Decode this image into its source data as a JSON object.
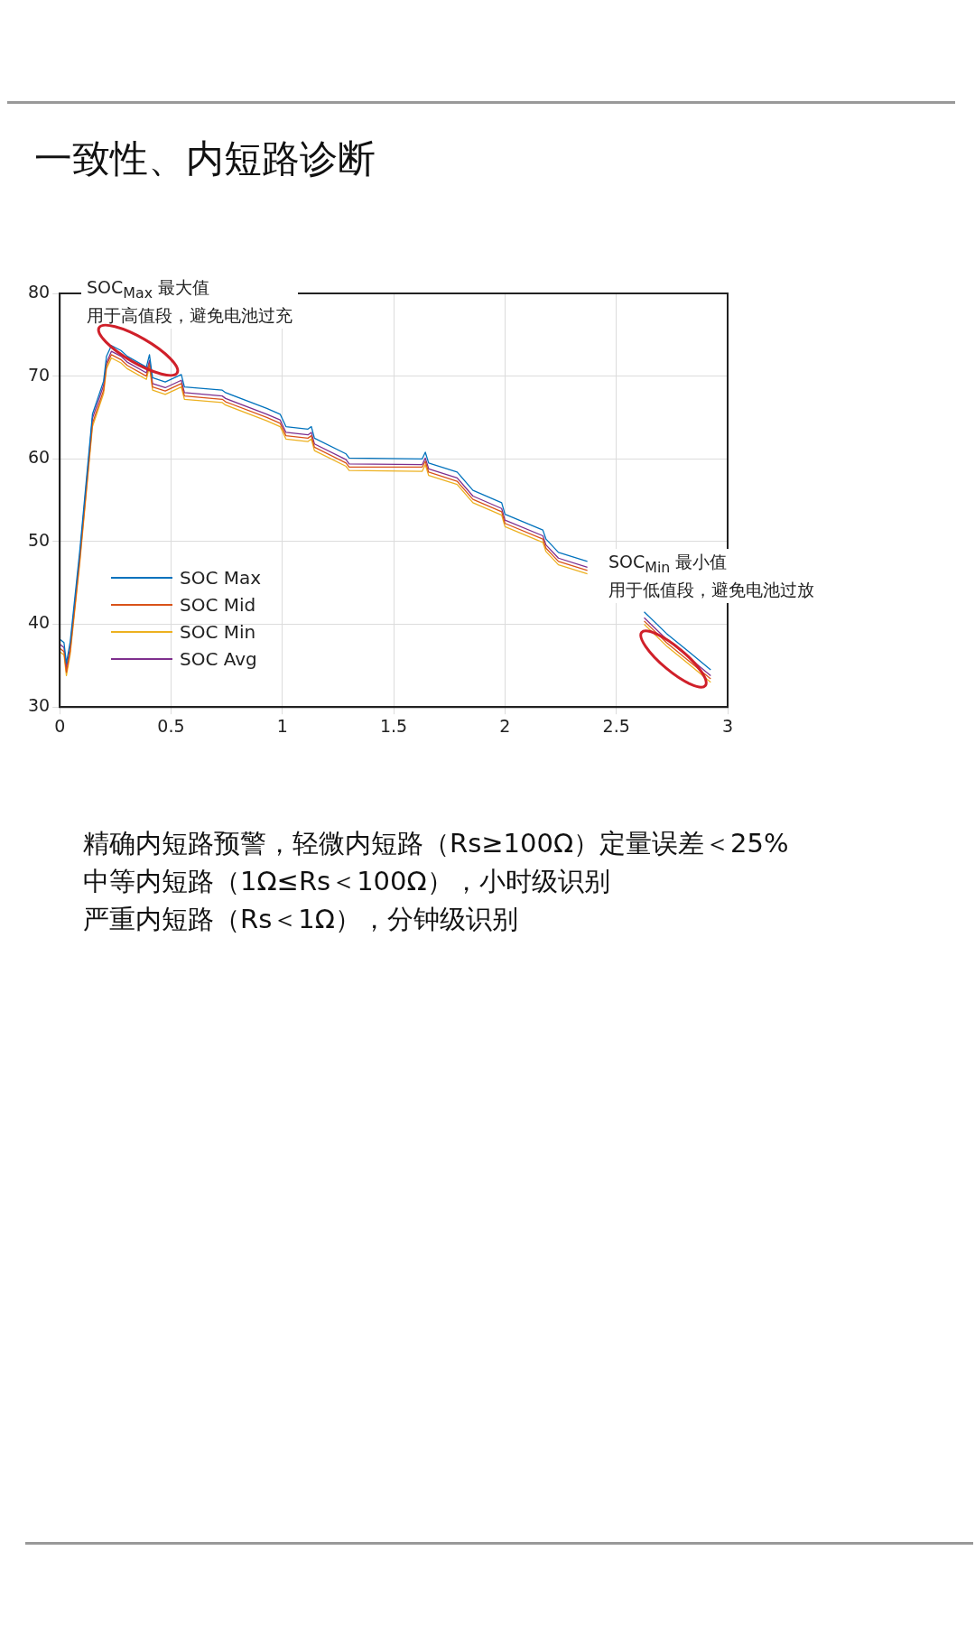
{
  "chart_data": {
    "type": "line",
    "title": "一致性、内短路诊断",
    "x": [
      0,
      0.019,
      0.03,
      0.047,
      0.09,
      0.147,
      0.197,
      0.21,
      0.232,
      0.275,
      0.303,
      0.389,
      0.403,
      0.417,
      0.474,
      0.546,
      0.56,
      0.73,
      0.745,
      0.93,
      0.99,
      1.016,
      1.115,
      1.13,
      1.144,
      1.286,
      1.3,
      1.628,
      1.642,
      1.657,
      1.785,
      1.856,
      1.985,
      2.0,
      2.17,
      2.184,
      2.24,
      2.37,
      2.5,
      2.625,
      2.725,
      2.825,
      2.924
    ],
    "series": [
      {
        "name": "SOC Max",
        "color": "#0072bd",
        "values": [
          38.2,
          37.8,
          35.3,
          37.9,
          48.9,
          65.4,
          69.4,
          72.4,
          73.7,
          73.1,
          72.4,
          71.1,
          72.6,
          69.8,
          69.3,
          70.2,
          68.7,
          68.3,
          68,
          66.1,
          65.4,
          63.9,
          63.6,
          63.9,
          62.5,
          60.6,
          60.1,
          60,
          60.8,
          59.5,
          58.4,
          56.2,
          54.7,
          53.3,
          51.4,
          50.3,
          48.7,
          47.6,
          null,
          41.5,
          38.9,
          36.7,
          34.5
        ]
      },
      {
        "name": "SOC Mid",
        "color": "#d95319",
        "values": [
          37.1,
          36.7,
          34.2,
          36.8,
          47.8,
          64.3,
          68.3,
          71.3,
          72.6,
          72.0,
          71.3,
          70.0,
          71.5,
          68.7,
          68.2,
          69.1,
          67.6,
          67.2,
          66.9,
          65.0,
          64.3,
          62.8,
          62.5,
          62.8,
          61.4,
          59.5,
          59.0,
          59.0,
          59.7,
          58.4,
          57.3,
          55.1,
          53.6,
          52.2,
          50.3,
          49.2,
          47.6,
          46.5,
          null,
          40.4,
          37.8,
          35.6,
          33.4
        ]
      },
      {
        "name": "SOC Min",
        "color": "#edb120",
        "values": [
          36.7,
          36.3,
          33.8,
          36.4,
          47.4,
          63.9,
          67.9,
          70.9,
          72.2,
          71.6,
          70.9,
          69.6,
          71.1,
          68.3,
          67.8,
          68.7,
          67.2,
          66.8,
          66.5,
          64.6,
          63.9,
          62.4,
          62.1,
          62.4,
          61.0,
          59.1,
          58.6,
          58.5,
          59.3,
          58.0,
          56.9,
          54.7,
          53.2,
          51.8,
          49.9,
          48.8,
          47.2,
          46.1,
          null,
          40.0,
          37.4,
          35.2,
          33.0
        ]
      },
      {
        "name": "SOC Avg",
        "color": "#7e2f8e",
        "values": [
          37.6,
          37.2,
          34.7,
          37.3,
          48.3,
          64.9,
          68.9,
          71.6,
          73.0,
          72.4,
          71.7,
          70.4,
          71.9,
          69.1,
          68.6,
          69.5,
          68.0,
          67.6,
          67.3,
          65.4,
          64.7,
          63.2,
          62.9,
          63.2,
          61.8,
          59.9,
          59.4,
          59.3,
          60.1,
          58.8,
          57.7,
          55.5,
          54.0,
          52.6,
          50.7,
          49.6,
          48.0,
          46.9,
          null,
          40.8,
          38.2,
          36.0,
          33.8
        ]
      }
    ],
    "xlim": [
      0,
      3
    ],
    "xticks": [
      0,
      0.5,
      1,
      1.5,
      2,
      2.5,
      3
    ],
    "ylim": [
      30,
      80
    ],
    "yticks": [
      30,
      40,
      50,
      60,
      70,
      80
    ],
    "grid": true,
    "legend": "bottom left",
    "marker": "none",
    "line_style": "solid",
    "annotations": [
      "SOC$_{Max}$ 最大值",
      "用于高值段，避免电池过充",
      "SOC$_{Min}$ 最小值",
      "用于低值段，避免电池过放",
      "精确内短路预警，轻微内短路（Rs≥100Ω）定量误差＜25%",
      "中等内短路（1Ω≤Rs＜100Ω），小时级识别",
      "严重内短路（Rs＜1Ω），分钟级识别"
    ]
  }
}
